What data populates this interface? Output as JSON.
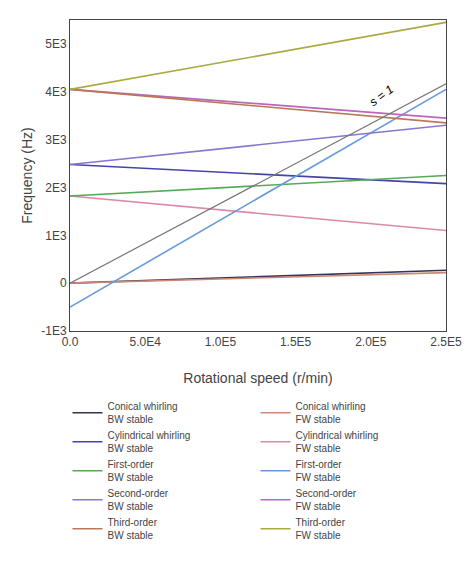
{
  "chart_data": {
    "type": "line",
    "xlabel": "Rotational speed (r/min)",
    "ylabel": "Frequency (Hz)",
    "x": [
      0,
      250000
    ],
    "xlim": [
      0,
      250000
    ],
    "ylim": [
      -1000,
      5500
    ],
    "xticks": [
      {
        "value": 0,
        "label": "0.0"
      },
      {
        "value": 50000,
        "label": "5.0E4"
      },
      {
        "value": 100000,
        "label": "1.0E5"
      },
      {
        "value": 150000,
        "label": "1.5E5"
      },
      {
        "value": 200000,
        "label": "2.0E5"
      },
      {
        "value": 250000,
        "label": "2.5E5"
      }
    ],
    "yticks": [
      {
        "value": -1000,
        "label": "-1E3"
      },
      0,
      {
        "value": 1000,
        "label": "1E3"
      },
      {
        "value": 2000,
        "label": "2E3"
      },
      {
        "value": 3000,
        "label": "3E3"
      },
      {
        "value": 4000,
        "label": "4E3"
      },
      {
        "value": 5000,
        "label": "5E3"
      }
    ],
    "grid": false,
    "legend": "bottom",
    "series": [
      {
        "name": "Conical whirling\nBW stable",
        "color": "#333355",
        "values": [
          0,
          270
        ]
      },
      {
        "name": "Conical whirling\nFW stable",
        "color": "#cc8877",
        "values": [
          0,
          220
        ]
      },
      {
        "name": "Cylindrical whirling\nBW stable",
        "color": "#4444aa",
        "values": [
          2480,
          2080
        ]
      },
      {
        "name": "Cylindrical whirling\nFW stable",
        "color": "#dd88aa",
        "values": [
          1820,
          1100
        ]
      },
      {
        "name": "First-order\nBW stable",
        "color": "#55aa55",
        "values": [
          1820,
          2250
        ]
      },
      {
        "name": "First-order\nFW stable",
        "color": "#6699dd",
        "values": [
          -500,
          4050
        ]
      },
      {
        "name": "Second-order\nBW stable",
        "color": "#8877cc",
        "values": [
          2480,
          3300
        ]
      },
      {
        "name": "Second-order\nFW stable",
        "color": "#bb66bb",
        "values": [
          4050,
          3450
        ]
      },
      {
        "name": "Third-order\nBW stable",
        "color": "#bb7755",
        "values": [
          4050,
          3350
        ]
      },
      {
        "name": "Third-order\nFW stable",
        "color": "#aaaa44",
        "values": [
          4050,
          5450
        ]
      },
      {
        "color": "#777777",
        "values": [
          0,
          4166.666666666667
        ]
      }
    ],
    "annotations": [
      {
        "text": "s = 1",
        "x": 195000,
        "y": 3580
      }
    ]
  }
}
